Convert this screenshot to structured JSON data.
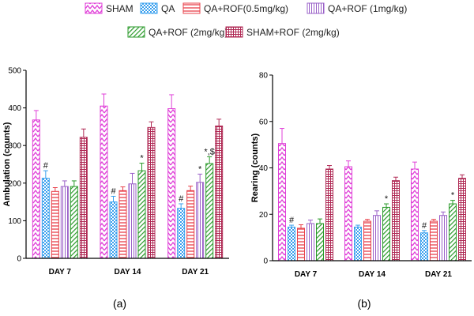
{
  "legend": {
    "items": [
      {
        "label": "SHAM",
        "color": "#e040d8",
        "pattern": "zigzag"
      },
      {
        "label": "QA",
        "color": "#3aa0ee",
        "pattern": "checker"
      },
      {
        "label": "QA+ROF(0.5mg/kg)",
        "color": "#e8404a",
        "pattern": "horizontal"
      },
      {
        "label": "QA+ROF (1mg/kg)",
        "color": "#9a60c8",
        "pattern": "vertical"
      },
      {
        "label": "QA+ROF (2mg/kg)",
        "color": "#2a9a2a",
        "pattern": "diagonal"
      },
      {
        "label": "SHAM+ROF (2mg/kg)",
        "color": "#b02a55",
        "pattern": "grid"
      }
    ]
  },
  "chart_data": [
    {
      "type": "bar",
      "panel_label": "(a)",
      "title": "",
      "xlabel": "",
      "ylabel": "Ambulation (counts)",
      "ylim": [
        0,
        500
      ],
      "yticks": [
        0,
        100,
        200,
        300,
        400,
        500
      ],
      "categories": [
        "DAY 7",
        "DAY 14",
        "DAY 21"
      ],
      "series": [
        {
          "name": "SHAM",
          "values": [
            368,
            405,
            398
          ],
          "errors": [
            25,
            32,
            37
          ]
        },
        {
          "name": "QA",
          "values": [
            213,
            150,
            133
          ],
          "errors": [
            20,
            15,
            12
          ]
        },
        {
          "name": "QA+ROF(0.5mg/kg)",
          "values": [
            178,
            180,
            180
          ],
          "errors": [
            10,
            10,
            12
          ]
        },
        {
          "name": "QA+ROF (1mg/kg)",
          "values": [
            191,
            198,
            202
          ],
          "errors": [
            15,
            28,
            22
          ]
        },
        {
          "name": "QA+ROF (2mg/kg)",
          "values": [
            191,
            233,
            252
          ],
          "errors": [
            15,
            20,
            18
          ]
        },
        {
          "name": "SHAM+ROF (2mg/kg)",
          "values": [
            322,
            348,
            352
          ],
          "errors": [
            22,
            15,
            18
          ]
        }
      ],
      "annotations": [
        {
          "category": "DAY 7",
          "series": "QA",
          "text": "#"
        },
        {
          "category": "DAY 14",
          "series": "QA",
          "text": "#"
        },
        {
          "category": "DAY 14",
          "series": "QA+ROF (2mg/kg)",
          "text": "*"
        },
        {
          "category": "DAY 21",
          "series": "QA",
          "text": "#"
        },
        {
          "category": "DAY 21",
          "series": "QA+ROF (1mg/kg)",
          "text": "*"
        },
        {
          "category": "DAY 21",
          "series": "QA+ROF (2mg/kg)",
          "text": "*,$"
        }
      ]
    },
    {
      "type": "bar",
      "panel_label": "(b)",
      "title": "",
      "xlabel": "",
      "ylabel": "Rearing (counts)",
      "ylim": [
        0,
        80
      ],
      "yticks": [
        0,
        20,
        40,
        60,
        80
      ],
      "categories": [
        "DAY 7",
        "DAY 14",
        "DAY 21"
      ],
      "series": [
        {
          "name": "SHAM",
          "values": [
            50.5,
            40.5,
            39.5
          ],
          "errors": [
            6.5,
            2.5,
            3
          ]
        },
        {
          "name": "QA",
          "values": [
            14.5,
            14.5,
            12
          ],
          "errors": [
            0.8,
            0.8,
            1
          ]
        },
        {
          "name": "QA+ROF(0.5mg/kg)",
          "values": [
            14,
            17,
            17
          ],
          "errors": [
            1.5,
            0.8,
            0.8
          ]
        },
        {
          "name": "QA+ROF (1mg/kg)",
          "values": [
            16,
            19.5,
            19.5
          ],
          "errors": [
            1.5,
            2,
            1.5
          ]
        },
        {
          "name": "QA+ROF (2mg/kg)",
          "values": [
            16,
            23,
            24.5
          ],
          "errors": [
            2,
            1.5,
            1.5
          ]
        },
        {
          "name": "SHAM+ROF (2mg/kg)",
          "values": [
            39.5,
            34.5,
            35.5
          ],
          "errors": [
            1.5,
            1.5,
            1.5
          ]
        }
      ],
      "annotations": [
        {
          "category": "DAY 7",
          "series": "QA",
          "text": "#"
        },
        {
          "category": "DAY 14",
          "series": "QA+ROF (2mg/kg)",
          "text": "*"
        },
        {
          "category": "DAY 21",
          "series": "QA",
          "text": "#"
        },
        {
          "category": "DAY 21",
          "series": "QA+ROF (2mg/kg)",
          "text": "*"
        }
      ]
    }
  ]
}
